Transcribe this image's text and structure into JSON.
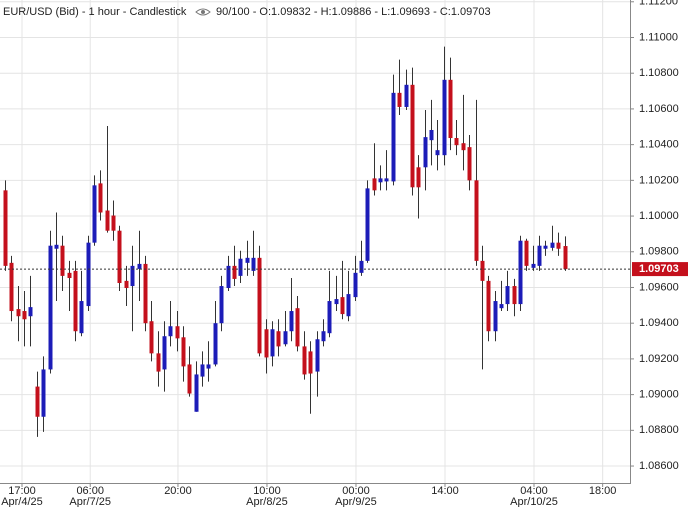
{
  "chart_data": {
    "type": "candlestick",
    "title": "EUR/USD (Bid) - 1 hour - Candlestick",
    "subtitle": "90/100 - O:1.09832 - H:1.09886 - L:1.09693 - C:1.09703",
    "up_color": "#1c1cb8",
    "down_color": "#c4101c",
    "grid": true,
    "ylim": [
      1.08505,
      1.1121
    ],
    "yticks": [
      {
        "value": 1.086,
        "label": "1.08600"
      },
      {
        "value": 1.088,
        "label": "1.08800"
      },
      {
        "value": 1.09,
        "label": "1.09000"
      },
      {
        "value": 1.092,
        "label": "1.09200"
      },
      {
        "value": 1.094,
        "label": "1.09400"
      },
      {
        "value": 1.096,
        "label": "1.09600"
      },
      {
        "value": 1.098,
        "label": "1.09800"
      },
      {
        "value": 1.1,
        "label": "1.10000"
      },
      {
        "value": 1.102,
        "label": "1.10200"
      },
      {
        "value": 1.104,
        "label": "1.10400"
      },
      {
        "value": 1.106,
        "label": "1.10600"
      },
      {
        "value": 1.108,
        "label": "1.10800"
      },
      {
        "value": 1.11,
        "label": "1.11000"
      },
      {
        "value": 1.112,
        "label": "1.11200"
      }
    ],
    "xlim": [
      -0.79,
      98.3
    ],
    "xticks": [
      {
        "value": 2.67,
        "label": "17:00",
        "date": "Apr/4/25"
      },
      {
        "value": 13.4,
        "label": "06:00",
        "date": "Apr/7/25"
      },
      {
        "value": 27.2,
        "label": "20:00"
      },
      {
        "value": 41.2,
        "label": "10:00",
        "date": "Apr/8/25"
      },
      {
        "value": 55.2,
        "label": "00:00",
        "date": "Apr/9/25"
      },
      {
        "value": 69.2,
        "label": "14:00"
      },
      {
        "value": 83.2,
        "label": "04:00",
        "date": "Apr/10/25"
      },
      {
        "value": 94.0,
        "label": "18:00"
      }
    ],
    "last_price": {
      "value": 1.09703,
      "label": "1.09703"
    },
    "open": [
      1.10144,
      1.09738,
      1.09479,
      1.09468,
      1.09439,
      1.09045,
      1.08876,
      1.09141,
      1.09817,
      1.09834,
      1.09682,
      1.09693,
      1.09344,
      1.09496,
      1.09851,
      1.10183,
      1.10031,
      1.10003,
      1.09918,
      1.09637,
      1.09608,
      1.09704,
      1.09732,
      1.09411,
      1.09231,
      1.09141,
      1.09327,
      1.09383,
      1.09321,
      1.09169,
      1.08904,
      1.09101,
      1.09146,
      1.09169,
      1.094,
      1.09597,
      1.09721,
      1.09665,
      1.09738,
      1.09693,
      1.09766,
      1.09366,
      1.09214,
      1.09355,
      1.09282,
      1.09355,
      1.09484,
      1.0927,
      1.09242,
      1.09129,
      1.09299,
      1.09344,
      1.09507,
      1.09546,
      1.09439,
      1.09546,
      1.09682,
      1.09749,
      1.10211,
      1.10189,
      1.10194,
      1.10194,
      1.1069,
      1.10611,
      1.10735,
      1.10273,
      1.10273,
      1.10425,
      1.10341,
      1.10341,
      1.10763,
      1.10437,
      1.10408,
      1.10386,
      1.102,
      1.09749,
      1.09637,
      1.09355,
      1.09484,
      1.09507,
      1.09608,
      1.09507,
      1.09862,
      1.0971,
      1.09721,
      1.09817,
      1.09822,
      1.09851,
      1.09832
    ],
    "high": [
      1.102,
      1.09777,
      1.09608,
      1.0958,
      1.09665,
      1.09129,
      1.09214,
      1.09918,
      1.1002,
      1.0989,
      1.09749,
      1.09749,
      1.09693,
      1.0989,
      1.10228,
      1.10256,
      1.10504,
      1.10087,
      1.09946,
      1.09721,
      1.09834,
      1.09918,
      1.09777,
      1.09524,
      1.09355,
      1.09411,
      1.09524,
      1.09468,
      1.09383,
      1.0927,
      1.09186,
      1.09242,
      1.09299,
      1.09524,
      1.09665,
      1.09777,
      1.09834,
      1.09806,
      1.09862,
      1.09918,
      1.09834,
      1.09422,
      1.09411,
      1.09422,
      1.09468,
      1.09653,
      1.09552,
      1.09355,
      1.09299,
      1.09355,
      1.09422,
      1.09693,
      1.09665,
      1.09749,
      1.09693,
      1.09777,
      1.09862,
      1.102,
      1.10408,
      1.10284,
      1.10369,
      1.10792,
      1.10876,
      1.1082,
      1.10831,
      1.10341,
      1.10594,
      1.10651,
      1.10538,
      1.10949,
      1.10887,
      1.10538,
      1.10679,
      1.10454,
      1.10651,
      1.09834,
      1.09665,
      1.0958,
      1.09637,
      1.09693,
      1.09648,
      1.0989,
      1.09873,
      1.09834,
      1.0989,
      1.09862,
      1.09946,
      1.09907,
      1.09886
    ],
    "low": [
      1.09693,
      1.09411,
      1.09299,
      1.0927,
      1.0927,
      1.08763,
      1.08791,
      1.09118,
      1.09524,
      1.0958,
      1.09468,
      1.09299,
      1.09327,
      1.09468,
      1.09834,
      1.09975,
      1.09907,
      1.09862,
      1.0958,
      1.09496,
      1.09355,
      1.09524,
      1.09355,
      1.09186,
      1.09045,
      1.09017,
      1.0927,
      1.09242,
      1.09073,
      1.08989,
      1.08904,
      1.09045,
      1.09073,
      1.09158,
      1.09355,
      1.0958,
      1.09608,
      1.09625,
      1.09665,
      1.09665,
      1.09214,
      1.09118,
      1.09158,
      1.09214,
      1.0927,
      1.09299,
      1.09242,
      1.09084,
      1.08893,
      1.08989,
      1.0927,
      1.09321,
      1.09468,
      1.09422,
      1.09411,
      1.09524,
      1.09665,
      1.09738,
      1.10115,
      1.10144,
      1.10144,
      1.10172,
      1.10566,
      1.10594,
      1.10115,
      1.09986,
      1.10144,
      1.10284,
      1.10256,
      1.10284,
      1.10369,
      1.10341,
      1.10256,
      1.10144,
      1.09721,
      1.09141,
      1.09299,
      1.09299,
      1.09468,
      1.09468,
      1.09439,
      1.09468,
      1.09693,
      1.09693,
      1.09693,
      1.09777,
      1.09806,
      1.09777,
      1.09693
    ],
    "close": [
      1.09721,
      1.09468,
      1.09439,
      1.09422,
      1.0949,
      1.08876,
      1.09141,
      1.09834,
      1.09839,
      1.09665,
      1.09653,
      1.09355,
      1.09524,
      1.09851,
      1.10172,
      1.1002,
      1.09918,
      1.09918,
      1.09625,
      1.09597,
      1.09721,
      1.09732,
      1.094,
      1.09231,
      1.09129,
      1.09327,
      1.09383,
      1.09315,
      1.09158,
      1.09006,
      1.09113,
      1.09169,
      1.09169,
      1.094,
      1.09608,
      1.09721,
      1.09648,
      1.09761,
      1.09766,
      1.09766,
      1.09231,
      1.09208,
      1.09366,
      1.0927,
      1.09355,
      1.09468,
      1.0927,
      1.09113,
      1.09118,
      1.0931,
      1.09355,
      1.09524,
      1.09535,
      1.09451,
      1.09563,
      1.09682,
      1.09749,
      1.10155,
      1.10144,
      1.10211,
      1.10211,
      1.1069,
      1.10611,
      1.10735,
      1.10161,
      1.10161,
      1.10442,
      1.10482,
      1.10369,
      1.10763,
      1.10437,
      1.10397,
      1.10369,
      1.102,
      1.09749,
      1.09637,
      1.09355,
      1.09524,
      1.09507,
      1.09608,
      1.09507,
      1.09862,
      1.09721,
      1.09732,
      1.09834,
      1.09834,
      1.09851,
      1.09817,
      1.09703
    ]
  }
}
